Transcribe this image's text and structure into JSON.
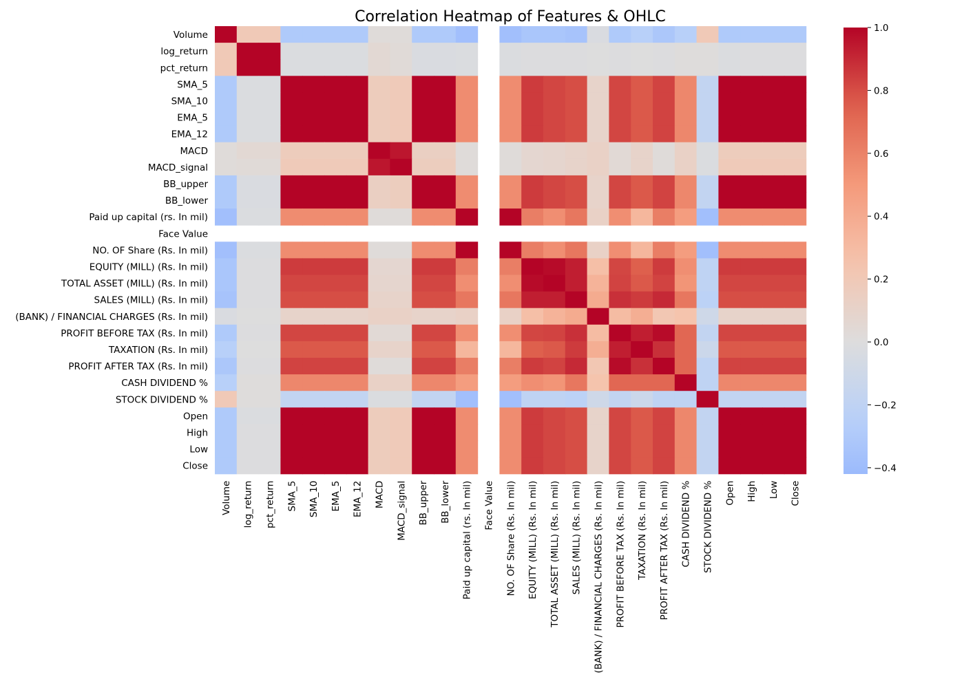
{
  "chart_data": {
    "type": "heatmap",
    "title": "Correlation Heatmap of Features & OHLC",
    "xlabel": "",
    "ylabel": "",
    "labels": [
      "Volume",
      "log_return",
      "pct_return",
      "SMA_5",
      "SMA_10",
      "EMA_5",
      "EMA_12",
      "MACD",
      "MACD_signal",
      "BB_upper",
      "BB_lower",
      "Paid up capital (rs. In mil)",
      "Face Value",
      "NO. OF Share (Rs. In mil)",
      "EQUITY (MILL) (Rs. In mil)",
      "TOTAL ASSET (MILL) (Rs. In mil)",
      "SALES (MILL) (Rs. In mil)",
      "(BANK) / FINANCIAL CHARGES (Rs. In mil)",
      "PROFIT BEFORE TAX (Rs. In mil)",
      "TAXATION (Rs. In mil)",
      "PROFIT AFTER TAX (Rs. In mil)",
      "CASH DIVIDEND %",
      "STOCK DIVIDEND %",
      "Open",
      "High",
      "Low",
      "Close"
    ],
    "colormap": "coolwarm",
    "vmin": -0.42,
    "vmax": 1.0,
    "colorbar_ticks": [
      "1.0",
      "0.8",
      "0.6",
      "0.4",
      "0.2",
      "0.0",
      "−0.2",
      "−0.4"
    ],
    "colorbar_tick_values": [
      1.0,
      0.8,
      0.6,
      0.4,
      0.2,
      0.0,
      -0.2,
      -0.4
    ],
    "matrix": [
      [
        1,
        0.2,
        0.2,
        -0.3,
        -0.3,
        -0.3,
        -0.3,
        0.02,
        0.02,
        -0.3,
        -0.3,
        -0.38,
        null,
        -0.38,
        -0.33,
        -0.33,
        -0.35,
        -0.03,
        -0.3,
        -0.25,
        -0.32,
        -0.25,
        0.2,
        -0.3,
        -0.3,
        -0.3,
        -0.3
      ],
      [
        0.2,
        1,
        1,
        -0.02,
        -0.02,
        -0.02,
        -0.02,
        0.05,
        0.03,
        -0.03,
        -0.03,
        -0.02,
        null,
        -0.02,
        -0.01,
        -0.01,
        -0.01,
        0.0,
        -0.01,
        0.0,
        -0.01,
        0.01,
        0.01,
        -0.02,
        -0.01,
        -0.01,
        -0.01
      ],
      [
        0.2,
        1,
        1,
        -0.02,
        -0.02,
        -0.02,
        -0.02,
        0.05,
        0.03,
        -0.03,
        -0.03,
        -0.02,
        null,
        -0.02,
        -0.01,
        -0.01,
        -0.01,
        0.0,
        -0.01,
        0.0,
        -0.01,
        0.01,
        0.01,
        -0.02,
        -0.01,
        -0.01,
        -0.01
      ],
      [
        -0.3,
        -0.02,
        -0.02,
        1,
        1,
        1,
        1,
        0.17,
        0.19,
        1,
        1,
        0.56,
        null,
        0.56,
        0.85,
        0.82,
        0.8,
        0.1,
        0.82,
        0.77,
        0.83,
        0.58,
        -0.18,
        1,
        1,
        1,
        1
      ],
      [
        -0.3,
        -0.02,
        -0.02,
        1,
        1,
        1,
        1,
        0.17,
        0.19,
        1,
        1,
        0.56,
        null,
        0.56,
        0.85,
        0.82,
        0.8,
        0.1,
        0.82,
        0.77,
        0.83,
        0.58,
        -0.18,
        1,
        1,
        1,
        1
      ],
      [
        -0.3,
        -0.02,
        -0.02,
        1,
        1,
        1,
        1,
        0.17,
        0.19,
        1,
        1,
        0.56,
        null,
        0.56,
        0.85,
        0.82,
        0.8,
        0.1,
        0.82,
        0.77,
        0.83,
        0.58,
        -0.18,
        1,
        1,
        1,
        1
      ],
      [
        -0.3,
        -0.02,
        -0.02,
        1,
        1,
        1,
        1,
        0.17,
        0.19,
        1,
        1,
        0.56,
        null,
        0.56,
        0.85,
        0.82,
        0.8,
        0.1,
        0.82,
        0.77,
        0.83,
        0.58,
        -0.18,
        1,
        1,
        1,
        1
      ],
      [
        0.02,
        0.05,
        0.05,
        0.17,
        0.17,
        0.17,
        0.17,
        1,
        0.95,
        0.14,
        0.14,
        0.02,
        null,
        0.02,
        0.07,
        0.08,
        0.1,
        0.12,
        0.04,
        0.1,
        0.02,
        0.12,
        -0.02,
        0.17,
        0.17,
        0.17,
        0.17
      ],
      [
        0.02,
        0.03,
        0.03,
        0.19,
        0.19,
        0.19,
        0.19,
        0.95,
        1,
        0.16,
        0.16,
        0.02,
        null,
        0.02,
        0.07,
        0.08,
        0.1,
        0.12,
        0.04,
        0.1,
        0.02,
        0.12,
        -0.02,
        0.19,
        0.19,
        0.19,
        0.19
      ],
      [
        -0.3,
        -0.03,
        -0.03,
        1,
        1,
        1,
        1,
        0.14,
        0.16,
        1,
        1,
        0.56,
        null,
        0.56,
        0.85,
        0.82,
        0.8,
        0.1,
        0.82,
        0.77,
        0.83,
        0.58,
        -0.18,
        1,
        1,
        1,
        1
      ],
      [
        -0.3,
        -0.03,
        -0.03,
        1,
        1,
        1,
        1,
        0.14,
        0.16,
        1,
        1,
        0.56,
        null,
        0.56,
        0.85,
        0.82,
        0.8,
        0.1,
        0.82,
        0.77,
        0.83,
        0.58,
        -0.18,
        1,
        1,
        1,
        1
      ],
      [
        -0.38,
        -0.02,
        -0.02,
        0.56,
        0.56,
        0.56,
        0.56,
        0.02,
        0.02,
        0.56,
        0.56,
        1,
        null,
        1,
        0.62,
        0.55,
        0.65,
        0.12,
        0.55,
        0.33,
        0.62,
        0.48,
        -0.38,
        0.56,
        0.56,
        0.56,
        0.56
      ],
      [
        null,
        null,
        null,
        null,
        null,
        null,
        null,
        null,
        null,
        null,
        null,
        null,
        null,
        null,
        null,
        null,
        null,
        null,
        null,
        null,
        null,
        null,
        null,
        null,
        null,
        null,
        null
      ],
      [
        -0.38,
        -0.02,
        -0.02,
        0.56,
        0.56,
        0.56,
        0.56,
        0.02,
        0.02,
        0.56,
        0.56,
        1,
        null,
        1,
        0.62,
        0.55,
        0.65,
        0.12,
        0.55,
        0.33,
        0.62,
        0.48,
        -0.38,
        0.56,
        0.56,
        0.56,
        0.56
      ],
      [
        -0.33,
        -0.01,
        -0.01,
        0.85,
        0.85,
        0.85,
        0.85,
        0.07,
        0.07,
        0.85,
        0.85,
        0.62,
        null,
        0.62,
        1,
        0.98,
        0.93,
        0.28,
        0.82,
        0.75,
        0.85,
        0.55,
        -0.2,
        0.85,
        0.85,
        0.85,
        0.85
      ],
      [
        -0.33,
        -0.01,
        -0.01,
        0.82,
        0.82,
        0.82,
        0.82,
        0.08,
        0.08,
        0.82,
        0.82,
        0.55,
        null,
        0.55,
        0.98,
        1,
        0.93,
        0.35,
        0.83,
        0.77,
        0.83,
        0.52,
        -0.2,
        0.82,
        0.82,
        0.82,
        0.82
      ],
      [
        -0.35,
        -0.01,
        -0.01,
        0.8,
        0.8,
        0.8,
        0.8,
        0.1,
        0.1,
        0.8,
        0.8,
        0.65,
        null,
        0.65,
        0.93,
        0.93,
        1,
        0.4,
        0.88,
        0.85,
        0.9,
        0.65,
        -0.22,
        0.8,
        0.8,
        0.8,
        0.8
      ],
      [
        -0.03,
        0.0,
        0.0,
        0.1,
        0.1,
        0.1,
        0.1,
        0.12,
        0.12,
        0.1,
        0.1,
        0.12,
        null,
        0.12,
        0.28,
        0.35,
        0.4,
        1,
        0.3,
        0.38,
        0.22,
        0.25,
        -0.1,
        0.1,
        0.1,
        0.1,
        0.1
      ],
      [
        -0.3,
        -0.01,
        -0.01,
        0.82,
        0.82,
        0.82,
        0.82,
        0.04,
        0.04,
        0.82,
        0.82,
        0.55,
        null,
        0.55,
        0.82,
        0.83,
        0.88,
        0.3,
        1,
        0.93,
        0.98,
        0.72,
        -0.18,
        0.82,
        0.82,
        0.82,
        0.82
      ],
      [
        -0.25,
        0.0,
        0.0,
        0.77,
        0.77,
        0.77,
        0.77,
        0.1,
        0.1,
        0.77,
        0.77,
        0.33,
        null,
        0.33,
        0.75,
        0.77,
        0.85,
        0.38,
        0.93,
        1,
        0.88,
        0.72,
        -0.12,
        0.77,
        0.77,
        0.77,
        0.77
      ],
      [
        -0.32,
        -0.01,
        -0.01,
        0.83,
        0.83,
        0.83,
        0.83,
        0.02,
        0.02,
        0.83,
        0.83,
        0.62,
        null,
        0.62,
        0.85,
        0.83,
        0.9,
        0.22,
        0.98,
        0.88,
        1,
        0.72,
        -0.2,
        0.83,
        0.83,
        0.83,
        0.83
      ],
      [
        -0.25,
        0.01,
        0.01,
        0.58,
        0.58,
        0.58,
        0.58,
        0.12,
        0.12,
        0.58,
        0.58,
        0.48,
        null,
        0.48,
        0.55,
        0.52,
        0.65,
        0.25,
        0.72,
        0.72,
        0.72,
        1,
        -0.2,
        0.58,
        0.58,
        0.58,
        0.58
      ],
      [
        0.2,
        0.01,
        0.01,
        -0.18,
        -0.18,
        -0.18,
        -0.18,
        -0.02,
        -0.02,
        -0.18,
        -0.18,
        -0.38,
        null,
        -0.38,
        -0.2,
        -0.2,
        -0.22,
        -0.1,
        -0.18,
        -0.12,
        -0.2,
        -0.2,
        1,
        -0.18,
        -0.18,
        -0.18,
        -0.18
      ],
      [
        -0.3,
        -0.02,
        -0.02,
        1,
        1,
        1,
        1,
        0.17,
        0.19,
        1,
        1,
        0.56,
        null,
        0.56,
        0.85,
        0.82,
        0.8,
        0.1,
        0.82,
        0.77,
        0.83,
        0.58,
        -0.18,
        1,
        1,
        1,
        1
      ],
      [
        -0.3,
        -0.01,
        -0.01,
        1,
        1,
        1,
        1,
        0.17,
        0.19,
        1,
        1,
        0.56,
        null,
        0.56,
        0.85,
        0.82,
        0.8,
        0.1,
        0.82,
        0.77,
        0.83,
        0.58,
        -0.18,
        1,
        1,
        1,
        1
      ],
      [
        -0.3,
        -0.01,
        -0.01,
        1,
        1,
        1,
        1,
        0.17,
        0.19,
        1,
        1,
        0.56,
        null,
        0.56,
        0.85,
        0.82,
        0.8,
        0.1,
        0.82,
        0.77,
        0.83,
        0.58,
        -0.18,
        1,
        1,
        1,
        1
      ],
      [
        -0.3,
        -0.01,
        -0.01,
        1,
        1,
        1,
        1,
        0.17,
        0.19,
        1,
        1,
        0.56,
        null,
        0.56,
        0.85,
        0.82,
        0.8,
        0.1,
        0.82,
        0.77,
        0.83,
        0.58,
        -0.18,
        1,
        1,
        1,
        1
      ]
    ]
  }
}
